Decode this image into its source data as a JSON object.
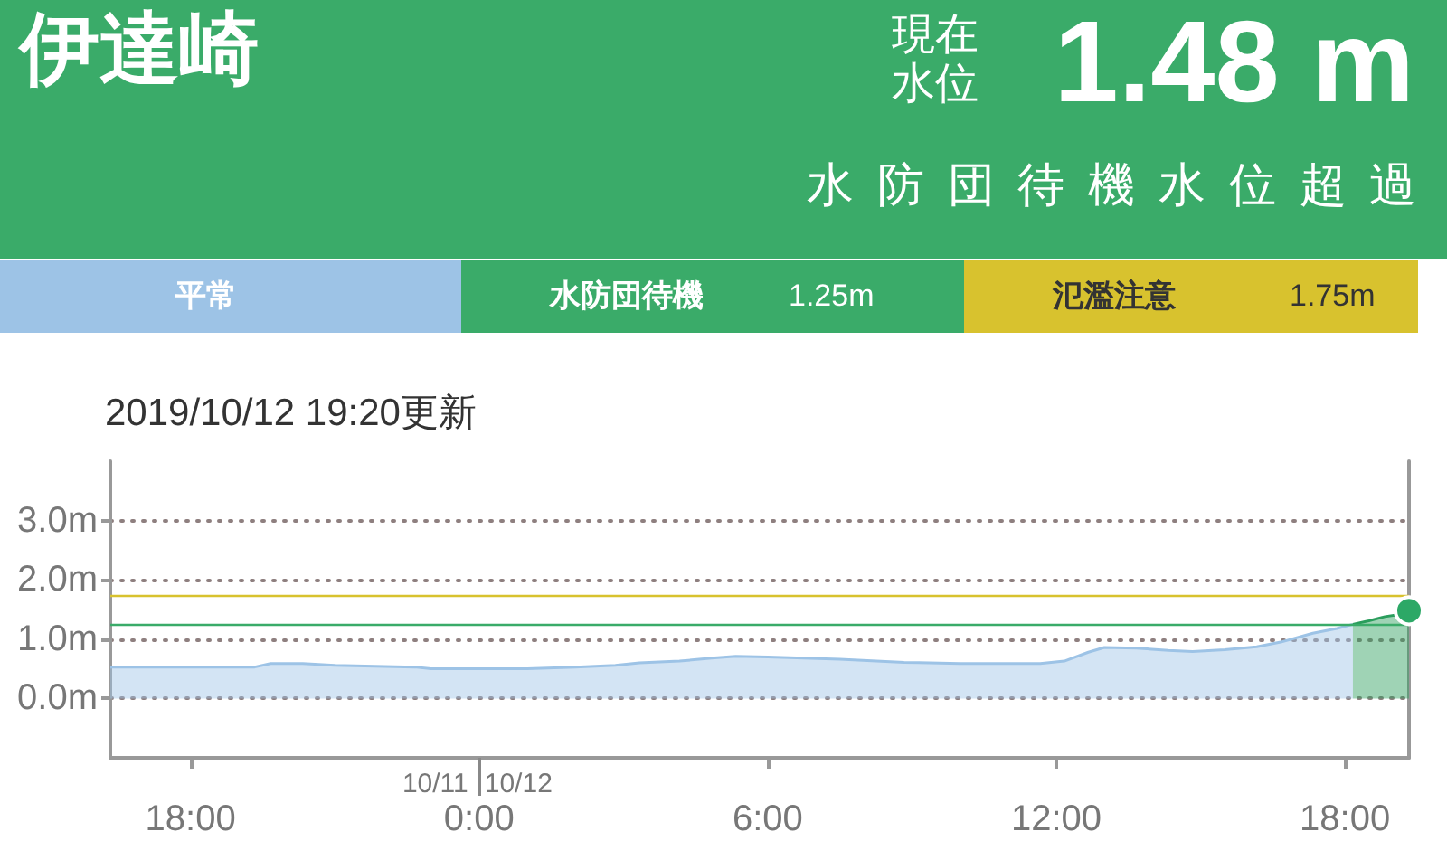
{
  "chart_data": {
    "type": "area",
    "title": "伊達崎",
    "subtitle": "2019/10/12 19:20更新",
    "annotations": [
      "現在水位",
      "1.48 m",
      "水防団待機水位超過",
      "平常",
      "1.25m",
      "1.75m",
      "10/11",
      "10/12"
    ],
    "legend": "top",
    "xlim": [
      "2019-10-11T16:20",
      "2019-10-12T19:20"
    ],
    "xticks": [
      {
        "value": "2019-10-11T18:00",
        "label": "18:00"
      },
      {
        "value": "2019-10-12T00:00",
        "label": "0:00"
      },
      {
        "value": "2019-10-12T06:00",
        "label": "6:00"
      },
      {
        "value": "2019-10-12T12:00",
        "label": "12:00"
      },
      {
        "value": "2019-10-12T18:00",
        "label": "18:00"
      }
    ],
    "ylim": [
      -1,
      4
    ],
    "yticks": [
      {
        "value": 0,
        "label": "0.0m"
      },
      {
        "value": 1,
        "label": "1.0m"
      },
      {
        "value": 2,
        "label": "2.0m"
      },
      {
        "value": 3,
        "label": "3.0m"
      }
    ],
    "grid": "y",
    "ref_lines": [
      {
        "axis": "y",
        "value": 1.25,
        "label": "水防団待機",
        "color": "#3aab69"
      },
      {
        "axis": "y",
        "value": 1.75,
        "label": "氾濫注意",
        "color": "#d8c22e"
      }
    ],
    "series": [
      {
        "color": "#9dc3e6",
        "x": [
          "2019-10-11T16:20",
          "2019-10-11T19:20",
          "2019-10-11T19:40",
          "2019-10-11T20:20",
          "2019-10-11T21:00",
          "2019-10-11T22:40",
          "2019-10-11T23:00",
          "2019-10-12T01:00",
          "2019-10-12T02:00",
          "2019-10-12T02:50",
          "2019-10-12T03:20",
          "2019-10-12T04:10",
          "2019-10-12T04:50",
          "2019-10-12T05:20",
          "2019-10-12T06:00",
          "2019-10-12T07:30",
          "2019-10-12T08:50",
          "2019-10-12T10:00",
          "2019-10-12T11:40",
          "2019-10-12T12:10",
          "2019-10-12T12:40",
          "2019-10-12T13:00",
          "2019-10-12T13:40",
          "2019-10-12T14:20",
          "2019-10-12T14:50",
          "2019-10-12T15:30",
          "2019-10-12T16:10",
          "2019-10-12T16:40",
          "2019-10-12T17:20",
          "2019-10-12T17:50",
          "2019-10-12T18:10"
        ],
        "values": [
          0.53,
          0.53,
          0.59,
          0.59,
          0.56,
          0.53,
          0.5,
          0.5,
          0.53,
          0.56,
          0.6,
          0.63,
          0.68,
          0.71,
          0.7,
          0.66,
          0.61,
          0.59,
          0.59,
          0.63,
          0.78,
          0.86,
          0.85,
          0.81,
          0.79,
          0.82,
          0.87,
          0.95,
          1.1,
          1.18,
          1.25
        ]
      },
      {
        "color": "#2a9d5c",
        "x": [
          "2019-10-12T18:10",
          "2019-10-12T18:30",
          "2019-10-12T18:50",
          "2019-10-12T19:10",
          "2019-10-12T19:20"
        ],
        "values": [
          1.25,
          1.31,
          1.38,
          1.42,
          1.48
        ]
      },
      {
        "type": "scatter",
        "color": "#2ca866",
        "marker": "circle",
        "x": [
          "2019-10-12T19:20"
        ],
        "values": [
          1.48
        ]
      }
    ]
  }
}
